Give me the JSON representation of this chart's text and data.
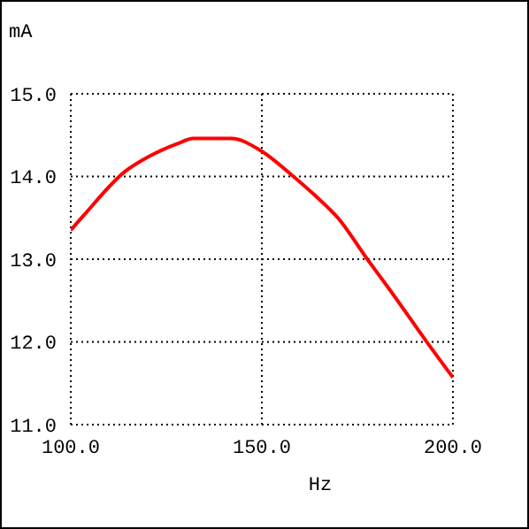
{
  "chart_data": {
    "type": "line",
    "xlabel": "Hz",
    "ylabel": "mA",
    "x": [
      100,
      103.4,
      114.2,
      120.4,
      128.1,
      132,
      142,
      149.8,
      157.5,
      163.7,
      169.9,
      177.6,
      183.8,
      193,
      200
    ],
    "series": [
      {
        "color": "#ff0000",
        "values": [
          13.35,
          13.53,
          14.06,
          14.24,
          14.4,
          14.46,
          14.46,
          14.31,
          14.03,
          13.78,
          13.5,
          13.0,
          12.61,
          12.01,
          11.57
        ]
      }
    ],
    "xlim": [
      100,
      200
    ],
    "xticks": [
      {
        "value": 100,
        "label": "100.0"
      },
      {
        "value": 150,
        "label": "150.0"
      },
      {
        "value": 200,
        "label": "200.0"
      }
    ],
    "ylim": [
      11,
      15
    ],
    "yticks": [
      {
        "value": 11,
        "label": "11.0"
      },
      {
        "value": 12,
        "label": "12.0"
      },
      {
        "value": 13,
        "label": "13.0"
      },
      {
        "value": 14,
        "label": "14.0"
      },
      {
        "value": 15,
        "label": "15.0"
      }
    ],
    "grid": true,
    "line_style": "solid",
    "marker": "none",
    "legend": false
  }
}
